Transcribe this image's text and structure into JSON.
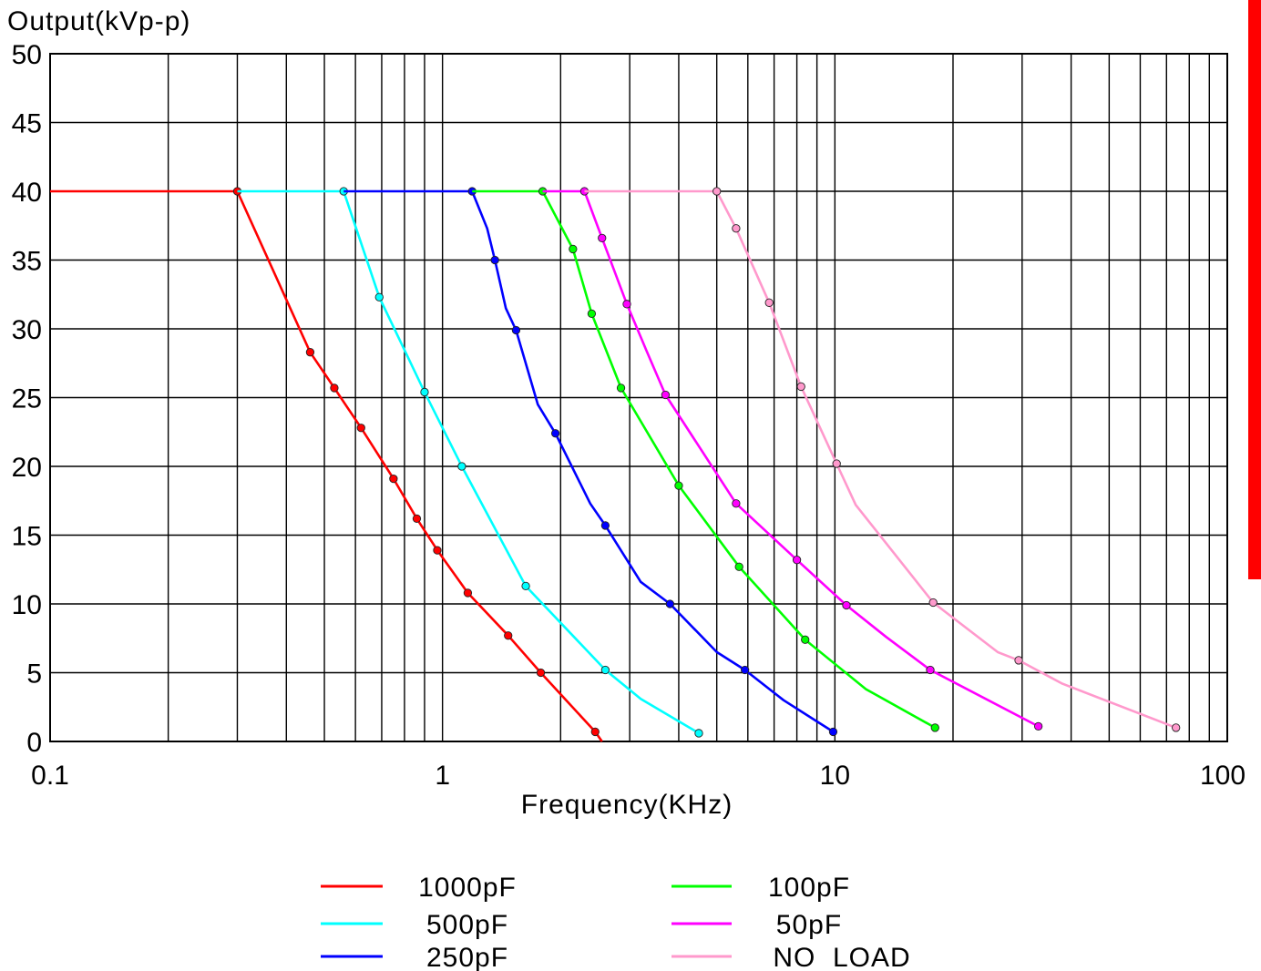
{
  "chart_data": {
    "type": "line",
    "title": "",
    "ylabel": "Output(kVp-p)",
    "xlabel": "Frequency(KHz)",
    "xscale": "log",
    "xlim": [
      0.1,
      100
    ],
    "ylim": [
      0,
      50
    ],
    "x_ticks": [
      "0.1",
      "1",
      "10",
      "100"
    ],
    "y_ticks": [
      "0",
      "5",
      "10",
      "15",
      "20",
      "25",
      "30",
      "35",
      "40",
      "45",
      "50"
    ],
    "grid": true,
    "legend_position": "bottom",
    "series": [
      {
        "name": "1000pF",
        "color": "#ff0000",
        "line": [
          [
            0.1,
            40
          ],
          [
            0.3,
            40
          ],
          [
            0.46,
            28.3
          ],
          [
            0.53,
            25.7
          ],
          [
            0.62,
            22.8
          ],
          [
            0.75,
            19.1
          ],
          [
            0.86,
            16.2
          ],
          [
            0.97,
            13.9
          ],
          [
            1.16,
            10.8
          ],
          [
            1.47,
            7.7
          ],
          [
            1.78,
            5.0
          ],
          [
            2.45,
            0.7
          ],
          [
            2.55,
            0
          ]
        ],
        "markers": [
          [
            0.3,
            40
          ],
          [
            0.46,
            28.3
          ],
          [
            0.53,
            25.7
          ],
          [
            0.62,
            22.8
          ],
          [
            0.75,
            19.1
          ],
          [
            0.86,
            16.2
          ],
          [
            0.97,
            13.9
          ],
          [
            1.16,
            10.8
          ],
          [
            1.47,
            7.7
          ],
          [
            1.78,
            5.0
          ],
          [
            2.45,
            0.7
          ]
        ]
      },
      {
        "name": "500pF",
        "color": "#00ffff",
        "line": [
          [
            0.3,
            40
          ],
          [
            0.56,
            40
          ],
          [
            0.69,
            32.3
          ],
          [
            0.9,
            25.4
          ],
          [
            1.12,
            20.0
          ],
          [
            1.63,
            11.3
          ],
          [
            2.6,
            5.2
          ],
          [
            3.2,
            3.1
          ],
          [
            4.5,
            0.6
          ]
        ],
        "markers": [
          [
            0.56,
            40
          ],
          [
            0.69,
            32.3
          ],
          [
            0.9,
            25.4
          ],
          [
            1.12,
            20.0
          ],
          [
            1.63,
            11.3
          ],
          [
            2.6,
            5.2
          ],
          [
            4.5,
            0.6
          ]
        ]
      },
      {
        "name": "250pF",
        "color": "#0000ff",
        "line": [
          [
            0.56,
            40
          ],
          [
            1.19,
            40
          ],
          [
            1.3,
            37.3
          ],
          [
            1.36,
            35.0
          ],
          [
            1.45,
            31.5
          ],
          [
            1.54,
            29.9
          ],
          [
            1.75,
            24.5
          ],
          [
            1.94,
            22.4
          ],
          [
            2.38,
            17.3
          ],
          [
            2.6,
            15.7
          ],
          [
            3.2,
            11.6
          ],
          [
            3.8,
            10.0
          ],
          [
            5.0,
            6.5
          ],
          [
            5.9,
            5.2
          ],
          [
            7.4,
            3.0
          ],
          [
            9.9,
            0.7
          ]
        ],
        "markers": [
          [
            1.19,
            40
          ],
          [
            1.36,
            35.0
          ],
          [
            1.54,
            29.9
          ],
          [
            1.94,
            22.4
          ],
          [
            2.6,
            15.7
          ],
          [
            3.8,
            10.0
          ],
          [
            5.9,
            5.2
          ],
          [
            9.9,
            0.7
          ]
        ]
      },
      {
        "name": "100pF",
        "color": "#00ff00",
        "line": [
          [
            1.19,
            40
          ],
          [
            1.8,
            40
          ],
          [
            2.15,
            35.8
          ],
          [
            2.4,
            31.1
          ],
          [
            2.85,
            25.7
          ],
          [
            4.0,
            18.6
          ],
          [
            5.7,
            12.7
          ],
          [
            8.4,
            7.4
          ],
          [
            12.0,
            3.8
          ],
          [
            18.0,
            1.0
          ]
        ],
        "markers": [
          [
            1.8,
            40
          ],
          [
            2.15,
            35.8
          ],
          [
            2.4,
            31.1
          ],
          [
            2.85,
            25.7
          ],
          [
            4.0,
            18.6
          ],
          [
            5.7,
            12.7
          ],
          [
            8.4,
            7.4
          ],
          [
            18.0,
            1.0
          ]
        ]
      },
      {
        "name": "50pF",
        "color": "#ff00ff",
        "line": [
          [
            1.8,
            40
          ],
          [
            2.3,
            40
          ],
          [
            2.55,
            36.6
          ],
          [
            2.95,
            31.8
          ],
          [
            3.3,
            28.5
          ],
          [
            3.7,
            25.2
          ],
          [
            5.6,
            17.3
          ],
          [
            8.0,
            13.2
          ],
          [
            10.7,
            9.9
          ],
          [
            13.5,
            7.6
          ],
          [
            17.5,
            5.2
          ],
          [
            33.0,
            1.1
          ]
        ],
        "markers": [
          [
            2.3,
            40
          ],
          [
            2.55,
            36.6
          ],
          [
            2.95,
            31.8
          ],
          [
            3.7,
            25.2
          ],
          [
            5.6,
            17.3
          ],
          [
            8.0,
            13.2
          ],
          [
            10.7,
            9.9
          ],
          [
            17.5,
            5.2
          ],
          [
            33.0,
            1.1
          ]
        ]
      },
      {
        "name": "NO  LOAD",
        "color": "#ff99cc",
        "line": [
          [
            2.3,
            40
          ],
          [
            5.0,
            40
          ],
          [
            5.6,
            37.3
          ],
          [
            6.8,
            31.9
          ],
          [
            8.2,
            25.8
          ],
          [
            10.1,
            20.2
          ],
          [
            11.3,
            17.2
          ],
          [
            17.8,
            10.1
          ],
          [
            26.0,
            6.5
          ],
          [
            29.4,
            5.9
          ],
          [
            38.0,
            4.2
          ],
          [
            74.0,
            1.0
          ]
        ],
        "markers": [
          [
            5.0,
            40
          ],
          [
            5.6,
            37.3
          ],
          [
            6.8,
            31.9
          ],
          [
            8.2,
            25.8
          ],
          [
            10.1,
            20.2
          ],
          [
            17.8,
            10.1
          ],
          [
            29.4,
            5.9
          ],
          [
            74.0,
            1.0
          ]
        ]
      }
    ]
  },
  "decor": {
    "side_bar_color": "#ff0000"
  }
}
